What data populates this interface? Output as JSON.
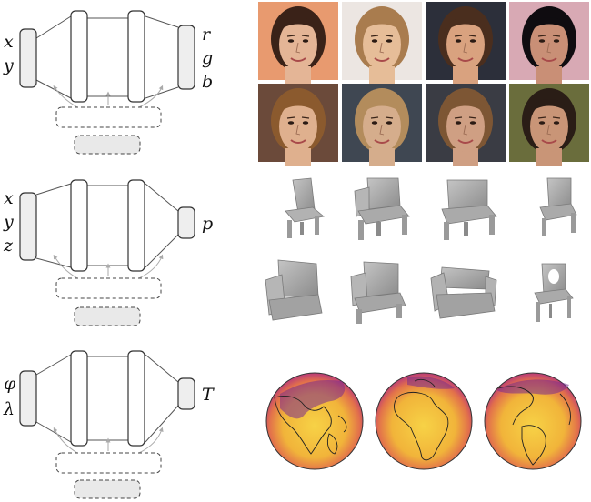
{
  "panels": [
    {
      "id": "image",
      "inputs": [
        "x",
        "y"
      ],
      "outputs": [
        "r",
        "g",
        "b"
      ],
      "samples": "faces",
      "face_tones": [
        "#e4b596",
        "#e6bd98",
        "#d9a27f",
        "#c98f76",
        "#dfb08e",
        "#d5ad8c",
        "#cf9f83",
        "#c99577"
      ],
      "hair_tones": [
        "#3a2218",
        "#a97c4e",
        "#4a2e1e",
        "#0f0c10",
        "#8b5a2e",
        "#b38c5c",
        "#7d5634",
        "#2a1d16"
      ],
      "bg_tones": [
        "#e89a6f",
        "#ece6e2",
        "#2c2f3a",
        "#d8a9b4",
        "#6b4a3a",
        "#3f4752",
        "#3a3c44",
        "#6a6d3c"
      ]
    },
    {
      "id": "shape",
      "inputs": [
        "x",
        "y",
        "z"
      ],
      "outputs": [
        "p"
      ],
      "samples": "chairs"
    },
    {
      "id": "climate",
      "inputs": [
        "φ",
        "λ"
      ],
      "outputs": [
        "T"
      ],
      "samples": "globes"
    }
  ],
  "colors": {
    "io_fill": "#eeeeee",
    "chair": "#a6a6a6",
    "globe_hot": "#f2c13a",
    "globe_cold": "#5b1f8a"
  }
}
